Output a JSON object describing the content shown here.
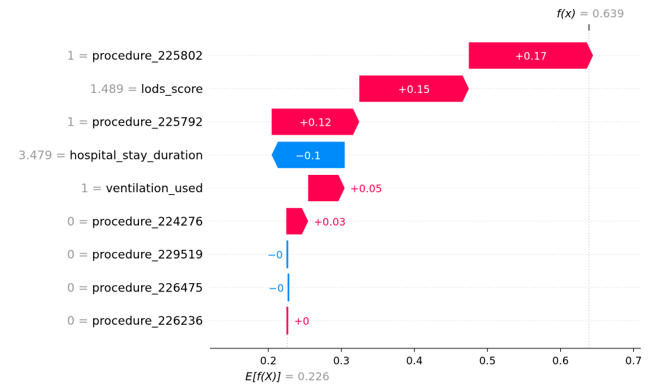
{
  "chart_data": {
    "type": "waterfall",
    "base_value": 0.226,
    "base_value_label": "0.226",
    "base_label": "E[f(X)]",
    "output_value": 0.639,
    "output_value_label": "0.639",
    "output_label": "f(x)",
    "xlim": [
      0.12,
      0.71
    ],
    "xticks": [
      0.2,
      0.3,
      0.4,
      0.5,
      0.6,
      0.7
    ],
    "xtick_labels": [
      "0.2",
      "0.3",
      "0.4",
      "0.5",
      "0.6",
      "0.7"
    ],
    "features": [
      {
        "value": "1",
        "name": "procedure_225802",
        "contribution": 0.17,
        "label": "+0.17"
      },
      {
        "value": "1.489",
        "name": "lods_score",
        "contribution": 0.15,
        "label": "+0.15"
      },
      {
        "value": "1",
        "name": "procedure_225792",
        "contribution": 0.12,
        "label": "+0.12"
      },
      {
        "value": "3.479",
        "name": "hospital_stay_duration",
        "contribution": -0.1,
        "label": "−0.1"
      },
      {
        "value": "1",
        "name": "ventilation_used",
        "contribution": 0.05,
        "label": "+0.05"
      },
      {
        "value": "0",
        "name": "procedure_224276",
        "contribution": 0.03,
        "label": "+0.03"
      },
      {
        "value": "0",
        "name": "procedure_229519",
        "contribution": -0.0015,
        "label": "−0"
      },
      {
        "value": "0",
        "name": "procedure_226475",
        "contribution": -0.0015,
        "label": "−0"
      },
      {
        "value": "0",
        "name": "procedure_226236",
        "contribution": 0.0015,
        "label": "+0"
      }
    ],
    "colors": {
      "positive": "#ff0051",
      "negative": "#008bfb",
      "value_gray": "#999999",
      "grid": "#cccccc",
      "text": "#000000"
    }
  }
}
